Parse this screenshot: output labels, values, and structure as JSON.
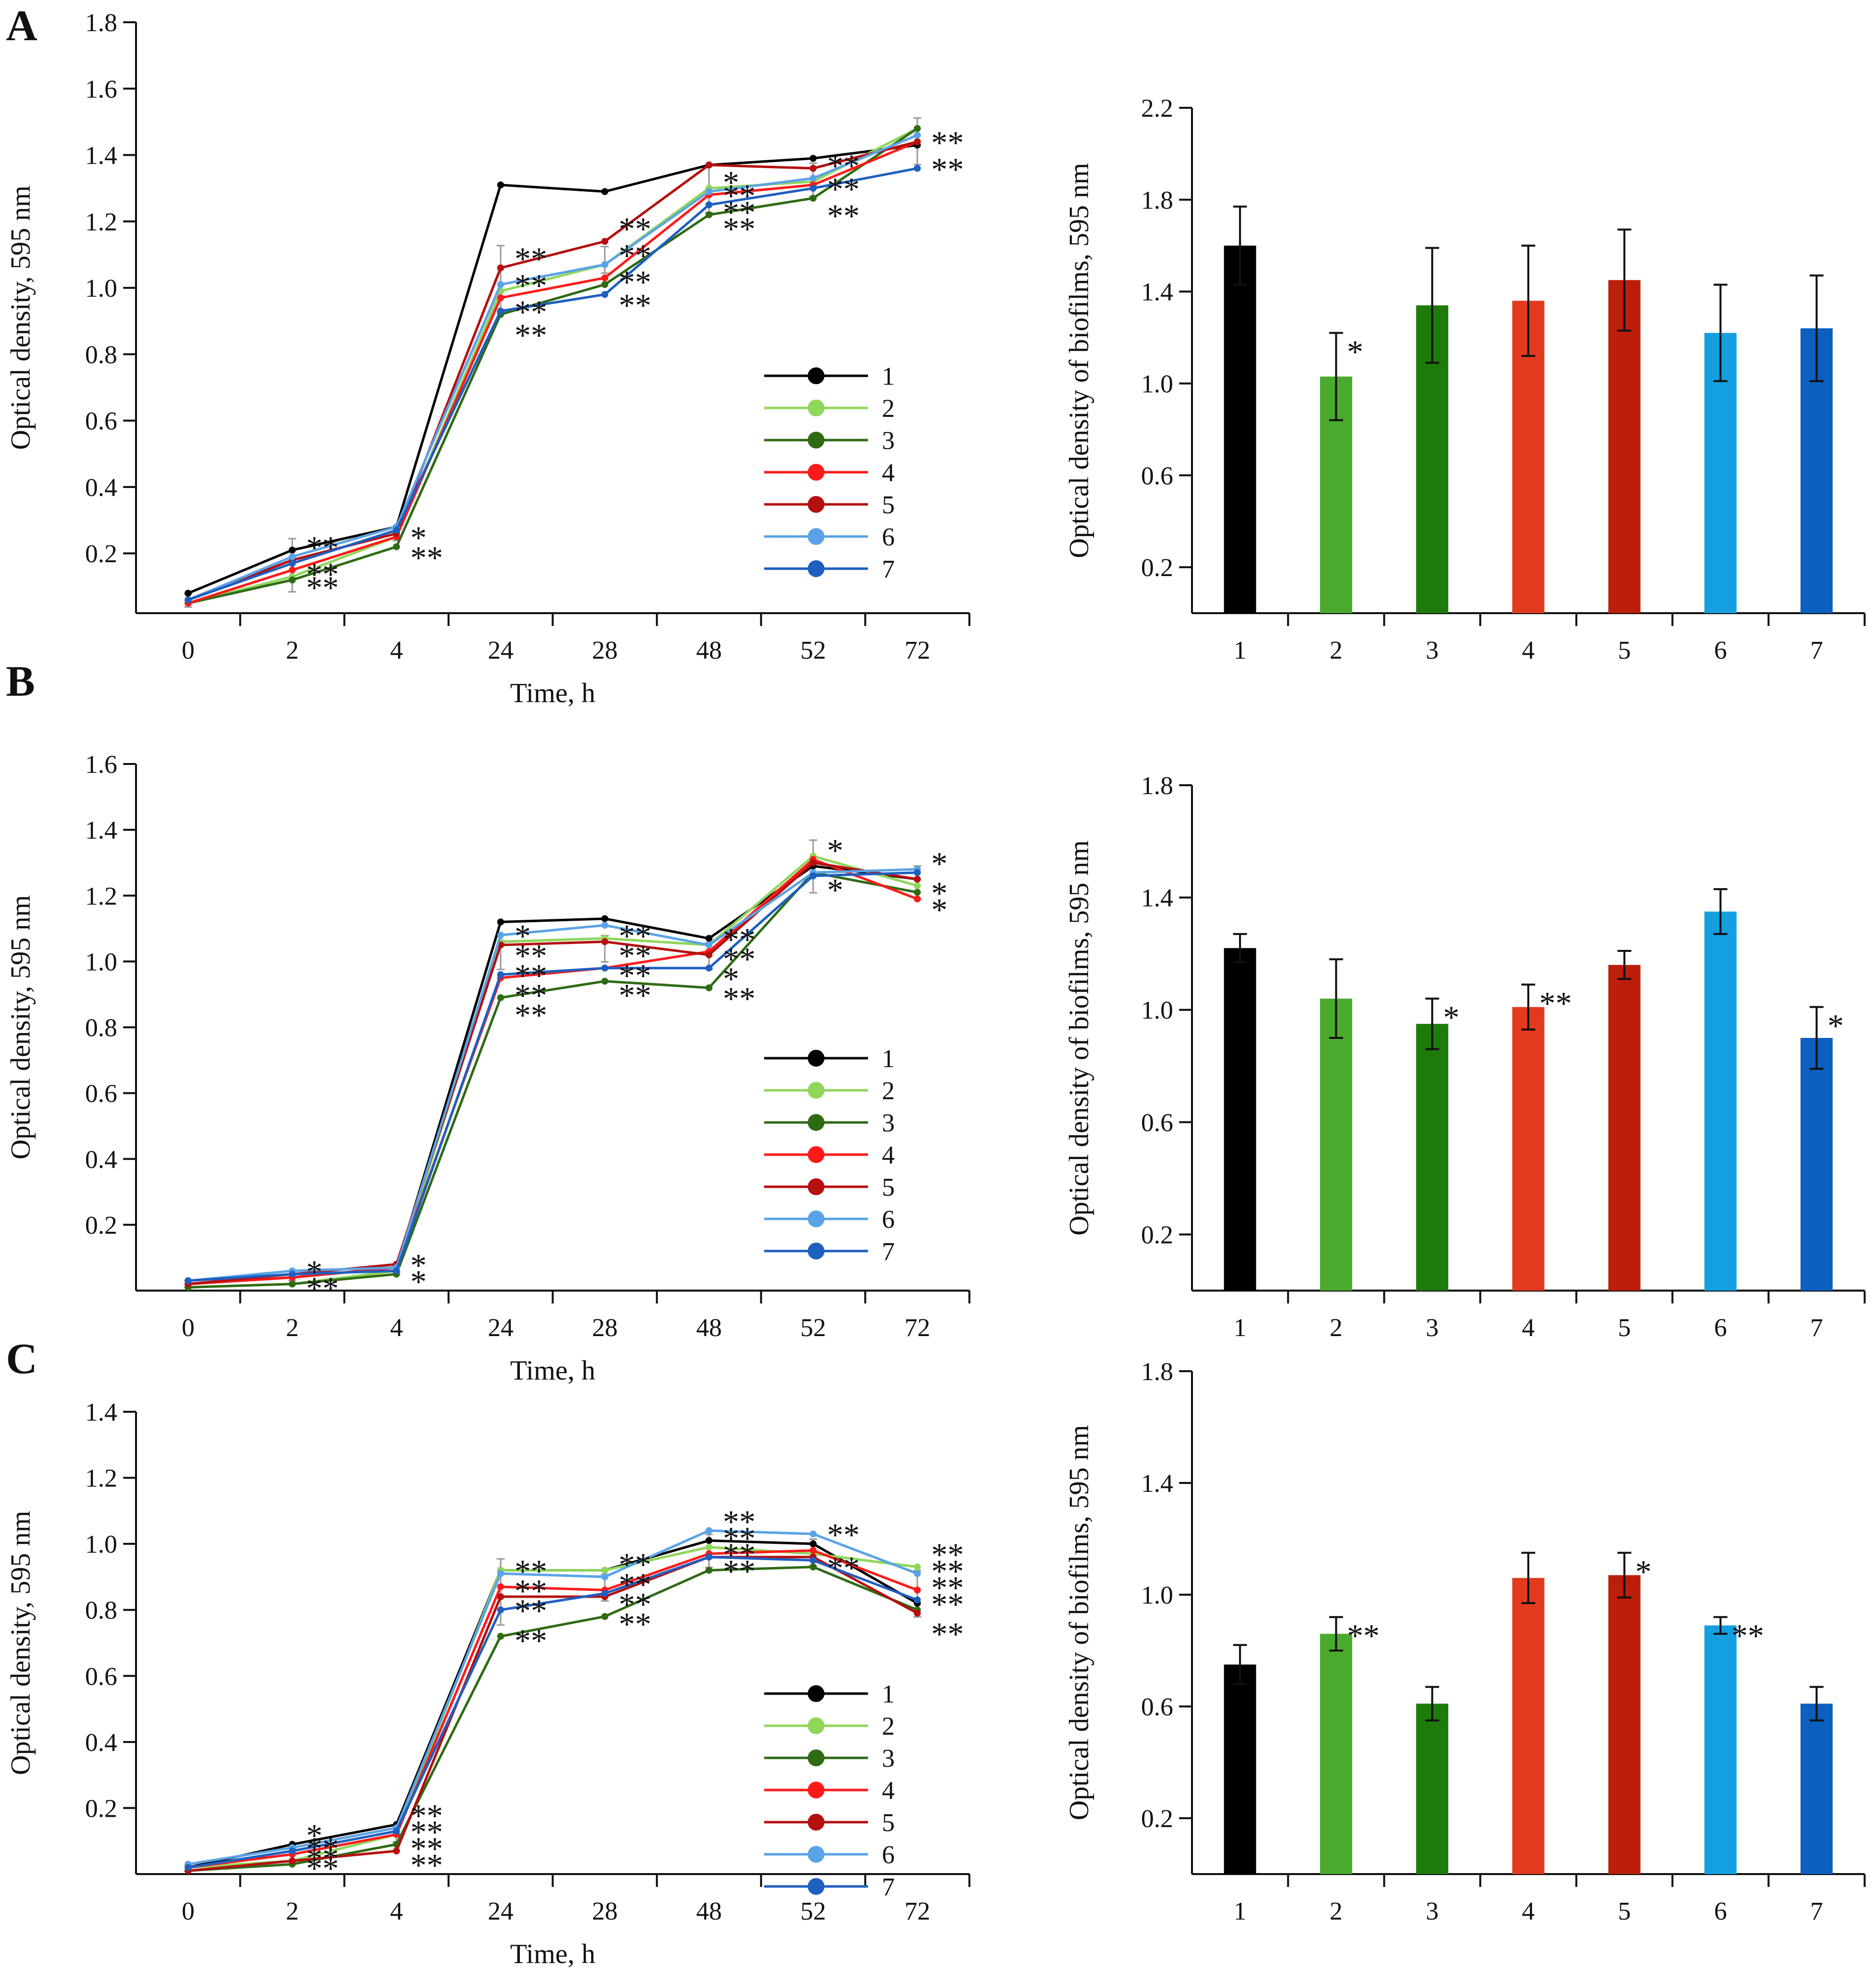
{
  "panels": [
    {
      "letter": "A"
    },
    {
      "letter": "B"
    },
    {
      "letter": "C"
    }
  ],
  "series_colors": [
    "#000000",
    "#8fd65a",
    "#2f6b14",
    "#ff1a1a",
    "#b50f0f",
    "#5ba3e6",
    "#1e5fc0"
  ],
  "bar_colors": [
    "#000000",
    "#4aaa2e",
    "#1f7a0c",
    "#e23a1e",
    "#bb1e0a",
    "#14a0e0",
    "#0a5fbf"
  ],
  "chart_data": [
    {
      "type": "line",
      "panel": "A",
      "xlabel": "Time, h",
      "ylabel": "Optical density, 595 nm",
      "x": [
        "0",
        "2",
        "4",
        "24",
        "28",
        "48",
        "52",
        "72"
      ],
      "yticks": [
        "0.2",
        "0.4",
        "0.6",
        "0.8",
        "1.0",
        "1.2",
        "1.4",
        "1.6",
        "1.8"
      ],
      "ylim": [
        0.02,
        1.8
      ],
      "legend": [
        "1",
        "2",
        "3",
        "4",
        "5",
        "6",
        "7"
      ],
      "legend_position": "lower-right",
      "series": [
        {
          "name": "1",
          "values": [
            0.08,
            0.21,
            0.28,
            1.31,
            1.29,
            1.37,
            1.39,
            1.43
          ]
        },
        {
          "name": "2",
          "values": [
            0.05,
            0.13,
            0.25,
            0.99,
            1.07,
            1.3,
            1.32,
            1.48
          ]
        },
        {
          "name": "3",
          "values": [
            0.05,
            0.12,
            0.22,
            0.92,
            1.01,
            1.22,
            1.27,
            1.48
          ]
        },
        {
          "name": "4",
          "values": [
            0.05,
            0.15,
            0.25,
            0.97,
            1.03,
            1.28,
            1.31,
            1.44
          ]
        },
        {
          "name": "5",
          "values": [
            0.06,
            0.18,
            0.26,
            1.06,
            1.14,
            1.37,
            1.36,
            1.44
          ]
        },
        {
          "name": "6",
          "values": [
            0.06,
            0.19,
            0.28,
            1.01,
            1.07,
            1.29,
            1.33,
            1.46
          ]
        },
        {
          "name": "7",
          "values": [
            0.06,
            0.17,
            0.27,
            0.93,
            0.98,
            1.25,
            1.3,
            1.36
          ]
        }
      ],
      "error": [
        0.02,
        0.08,
        0.02,
        0.1,
        0.04,
        0.07,
        0.05,
        0.07
      ],
      "annotations": [
        {
          "text": "**",
          "x": 1,
          "y": 0.22
        },
        {
          "text": "**",
          "x": 1,
          "y": 0.14
        },
        {
          "text": "**",
          "x": 1,
          "y": 0.1
        },
        {
          "text": "*",
          "x": 2,
          "y": 0.25
        },
        {
          "text": "**",
          "x": 2,
          "y": 0.19
        },
        {
          "text": "**",
          "x": 3,
          "y": 1.09
        },
        {
          "text": "**",
          "x": 3,
          "y": 1.01
        },
        {
          "text": "**",
          "x": 3,
          "y": 0.93
        },
        {
          "text": "**",
          "x": 3,
          "y": 0.86
        },
        {
          "text": "**",
          "x": 4,
          "y": 1.18
        },
        {
          "text": "**",
          "x": 4,
          "y": 1.1
        },
        {
          "text": "**",
          "x": 4,
          "y": 1.02
        },
        {
          "text": "**",
          "x": 4,
          "y": 0.95
        },
        {
          "text": "*",
          "x": 5,
          "y": 1.32
        },
        {
          "text": "**",
          "x": 5,
          "y": 1.28
        },
        {
          "text": "**",
          "x": 5,
          "y": 1.23
        },
        {
          "text": "**",
          "x": 5,
          "y": 1.18
        },
        {
          "text": "**",
          "x": 6,
          "y": 1.37
        },
        {
          "text": "**",
          "x": 6,
          "y": 1.3
        },
        {
          "text": "**",
          "x": 6,
          "y": 1.22
        },
        {
          "text": "**",
          "x": 7,
          "y": 1.44
        },
        {
          "text": "**",
          "x": 7,
          "y": 1.36
        }
      ]
    },
    {
      "type": "bar",
      "panel": "A",
      "ylabel": "Optical density of biofilms, 595 nm",
      "categories": [
        "1",
        "2",
        "3",
        "4",
        "5",
        "6",
        "7"
      ],
      "values": [
        1.6,
        1.03,
        1.34,
        1.36,
        1.45,
        1.22,
        1.24
      ],
      "error": [
        0.17,
        0.19,
        0.25,
        0.24,
        0.22,
        0.21,
        0.23
      ],
      "annotations": [
        {
          "text": "*",
          "index": 1
        }
      ],
      "yticks": [
        "0.2",
        "0.6",
        "1.0",
        "1.4",
        "1.8",
        "2.2"
      ],
      "ylim": [
        0.0,
        2.2
      ]
    },
    {
      "type": "line",
      "panel": "B",
      "xlabel": "Time, h",
      "ylabel": "Optical density, 595 nm",
      "x": [
        "0",
        "2",
        "4",
        "24",
        "28",
        "48",
        "52",
        "72"
      ],
      "yticks": [
        "0.2",
        "0.4",
        "0.6",
        "0.8",
        "1.0",
        "1.2",
        "1.4",
        "1.6"
      ],
      "ylim": [
        0.0,
        1.6
      ],
      "legend": [
        "1",
        "2",
        "3",
        "4",
        "5",
        "6",
        "7"
      ],
      "legend_position": "lower-right",
      "series": [
        {
          "name": "1",
          "values": [
            0.02,
            0.04,
            0.07,
            1.12,
            1.13,
            1.07,
            1.29,
            1.25
          ]
        },
        {
          "name": "2",
          "values": [
            0.01,
            0.02,
            0.06,
            1.06,
            1.07,
            1.05,
            1.32,
            1.23
          ]
        },
        {
          "name": "3",
          "values": [
            0.01,
            0.02,
            0.05,
            0.89,
            0.94,
            0.92,
            1.27,
            1.21
          ]
        },
        {
          "name": "4",
          "values": [
            0.02,
            0.04,
            0.07,
            0.95,
            0.98,
            1.03,
            1.31,
            1.19
          ]
        },
        {
          "name": "5",
          "values": [
            0.02,
            0.05,
            0.08,
            1.05,
            1.06,
            1.02,
            1.3,
            1.25
          ]
        },
        {
          "name": "6",
          "values": [
            0.03,
            0.06,
            0.07,
            1.08,
            1.11,
            1.05,
            1.27,
            1.28
          ]
        },
        {
          "name": "7",
          "values": [
            0.03,
            0.05,
            0.06,
            0.96,
            0.98,
            0.98,
            1.26,
            1.27
          ]
        }
      ],
      "error": [
        0.01,
        0.01,
        0.01,
        0.04,
        0.04,
        0.04,
        0.08,
        0.05
      ],
      "annotations": [
        {
          "text": "*",
          "x": 1,
          "y": 0.06
        },
        {
          "text": "**",
          "x": 1,
          "y": 0.01
        },
        {
          "text": "*",
          "x": 2,
          "y": 0.08
        },
        {
          "text": "*",
          "x": 2,
          "y": 0.03
        },
        {
          "text": "*",
          "x": 3,
          "y": 1.08
        },
        {
          "text": "**",
          "x": 3,
          "y": 1.02
        },
        {
          "text": "**",
          "x": 3,
          "y": 0.96
        },
        {
          "text": "**",
          "x": 3,
          "y": 0.9
        },
        {
          "text": "**",
          "x": 3,
          "y": 0.84
        },
        {
          "text": "**",
          "x": 4,
          "y": 1.08
        },
        {
          "text": "**",
          "x": 4,
          "y": 1.02
        },
        {
          "text": "**",
          "x": 4,
          "y": 0.96
        },
        {
          "text": "**",
          "x": 4,
          "y": 0.9
        },
        {
          "text": "**",
          "x": 5,
          "y": 1.07
        },
        {
          "text": "**",
          "x": 5,
          "y": 1.01
        },
        {
          "text": "*",
          "x": 5,
          "y": 0.95
        },
        {
          "text": "**",
          "x": 5,
          "y": 0.89
        },
        {
          "text": "*",
          "x": 6,
          "y": 1.34
        },
        {
          "text": "*",
          "x": 6,
          "y": 1.22
        },
        {
          "text": "*",
          "x": 7,
          "y": 1.3
        },
        {
          "text": "*",
          "x": 7,
          "y": 1.21
        },
        {
          "text": "*",
          "x": 7,
          "y": 1.16
        }
      ]
    },
    {
      "type": "bar",
      "panel": "B",
      "ylabel": "Optical density of biofilms, 595 nm",
      "categories": [
        "1",
        "2",
        "3",
        "4",
        "5",
        "6",
        "7"
      ],
      "values": [
        1.22,
        1.04,
        0.95,
        1.01,
        1.16,
        1.35,
        0.9
      ],
      "error": [
        0.05,
        0.14,
        0.09,
        0.08,
        0.05,
        0.08,
        0.11
      ],
      "annotations": [
        {
          "text": "*",
          "index": 2
        },
        {
          "text": "**",
          "index": 3
        },
        {
          "text": "*",
          "index": 6
        }
      ],
      "yticks": [
        "0.2",
        "0.6",
        "1.0",
        "1.4",
        "1.8"
      ],
      "ylim": [
        0.0,
        1.8
      ]
    },
    {
      "type": "line",
      "panel": "C",
      "xlabel": "Time, h",
      "ylabel": "Optical density, 595 nm",
      "x": [
        "0",
        "2",
        "4",
        "24",
        "28",
        "48",
        "52",
        "72"
      ],
      "yticks": [
        "0.2",
        "0.4",
        "0.6",
        "0.8",
        "1.0",
        "1.2",
        "1.4"
      ],
      "ylim": [
        0.0,
        1.4
      ],
      "legend": [
        "1",
        "2",
        "3",
        "4",
        "5",
        "6",
        "7"
      ],
      "legend_position": "lower-right",
      "series": [
        {
          "name": "1",
          "values": [
            0.02,
            0.09,
            0.15,
            0.92,
            0.92,
            1.01,
            1.0,
            0.82
          ]
        },
        {
          "name": "2",
          "values": [
            0.02,
            0.04,
            0.12,
            0.92,
            0.92,
            0.99,
            0.97,
            0.93
          ]
        },
        {
          "name": "3",
          "values": [
            0.01,
            0.03,
            0.09,
            0.72,
            0.78,
            0.92,
            0.93,
            0.8
          ]
        },
        {
          "name": "4",
          "values": [
            0.02,
            0.06,
            0.12,
            0.87,
            0.86,
            0.97,
            0.98,
            0.86
          ]
        },
        {
          "name": "5",
          "values": [
            0.01,
            0.04,
            0.07,
            0.84,
            0.84,
            0.96,
            0.96,
            0.79
          ]
        },
        {
          "name": "6",
          "values": [
            0.03,
            0.08,
            0.14,
            0.91,
            0.9,
            1.04,
            1.03,
            0.91
          ]
        },
        {
          "name": "7",
          "values": [
            0.02,
            0.07,
            0.13,
            0.8,
            0.85,
            0.96,
            0.95,
            0.83
          ]
        }
      ],
      "error": [
        0.01,
        0.02,
        0.02,
        0.1,
        0.04,
        0.05,
        0.04,
        0.07
      ],
      "annotations": [
        {
          "text": "*",
          "x": 1,
          "y": 0.12
        },
        {
          "text": "**",
          "x": 1,
          "y": 0.08
        },
        {
          "text": "**",
          "x": 1,
          "y": 0.05
        },
        {
          "text": "**",
          "x": 1,
          "y": 0.02
        },
        {
          "text": "**",
          "x": 2,
          "y": 0.18
        },
        {
          "text": "**",
          "x": 2,
          "y": 0.13
        },
        {
          "text": "**",
          "x": 2,
          "y": 0.08
        },
        {
          "text": "**",
          "x": 2,
          "y": 0.03
        },
        {
          "text": "**",
          "x": 3,
          "y": 0.92
        },
        {
          "text": "**",
          "x": 3,
          "y": 0.86
        },
        {
          "text": "**",
          "x": 3,
          "y": 0.8
        },
        {
          "text": "**",
          "x": 3,
          "y": 0.71
        },
        {
          "text": "**",
          "x": 4,
          "y": 0.94
        },
        {
          "text": "**",
          "x": 4,
          "y": 0.88
        },
        {
          "text": "**",
          "x": 4,
          "y": 0.82
        },
        {
          "text": "**",
          "x": 4,
          "y": 0.76
        },
        {
          "text": "**",
          "x": 5,
          "y": 1.07
        },
        {
          "text": "**",
          "x": 5,
          "y": 1.02
        },
        {
          "text": "**",
          "x": 5,
          "y": 0.97
        },
        {
          "text": "**",
          "x": 5,
          "y": 0.92
        },
        {
          "text": "**",
          "x": 6,
          "y": 1.03
        },
        {
          "text": "**",
          "x": 6,
          "y": 0.93
        },
        {
          "text": "**",
          "x": 7,
          "y": 0.97
        },
        {
          "text": "**",
          "x": 7,
          "y": 0.92
        },
        {
          "text": "**",
          "x": 7,
          "y": 0.87
        },
        {
          "text": "**",
          "x": 7,
          "y": 0.82
        },
        {
          "text": "**",
          "x": 7,
          "y": 0.73
        }
      ]
    },
    {
      "type": "bar",
      "panel": "C",
      "ylabel": "Optical density of biofilms, 595 nm",
      "categories": [
        "1",
        "2",
        "3",
        "4",
        "5",
        "6",
        "7"
      ],
      "values": [
        0.75,
        0.86,
        0.61,
        1.06,
        1.07,
        0.89,
        0.61
      ],
      "error": [
        0.07,
        0.06,
        0.06,
        0.09,
        0.08,
        0.03,
        0.06
      ],
      "annotations": [
        {
          "text": "**",
          "index": 1
        },
        {
          "text": "*",
          "index": 4
        },
        {
          "text": "**",
          "index": 5
        }
      ],
      "yticks": [
        "0.2",
        "0.6",
        "1.0",
        "1.4",
        "1.8"
      ],
      "ylim": [
        0.0,
        1.8
      ]
    }
  ]
}
